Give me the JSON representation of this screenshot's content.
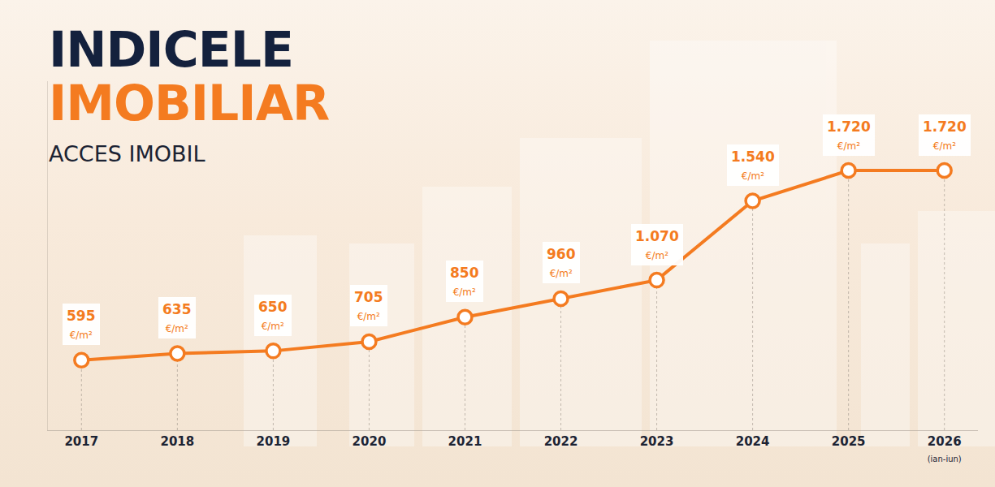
{
  "chart_data": {
    "type": "line",
    "title": "INDICELE IMOBILIAR",
    "subtitle": "ACCES IMOBIL",
    "categories": [
      "2017",
      "2018",
      "2019",
      "2020",
      "2021",
      "2022",
      "2023",
      "2024",
      "2025",
      "2026 (ian-iun)"
    ],
    "values": [
      595,
      635,
      650,
      705,
      850,
      960,
      1070,
      1540,
      1720,
      1720
    ],
    "value_labels": [
      "595 €/m²",
      "635 €/m²",
      "650 €/m²",
      "705 €/m²",
      "850 €/m²",
      "960 €/m²",
      "1.070 €/m²",
      "1.540 €/m²",
      "1.720 €/m²",
      "1.720 €/m²"
    ],
    "color": "#f47b20",
    "ylim": [
      180,
      2250
    ],
    "yticks": [],
    "grid": false,
    "data_labels": true,
    "tick_labels": "x",
    "marker": "circle",
    "line_style": "solid"
  }
}
